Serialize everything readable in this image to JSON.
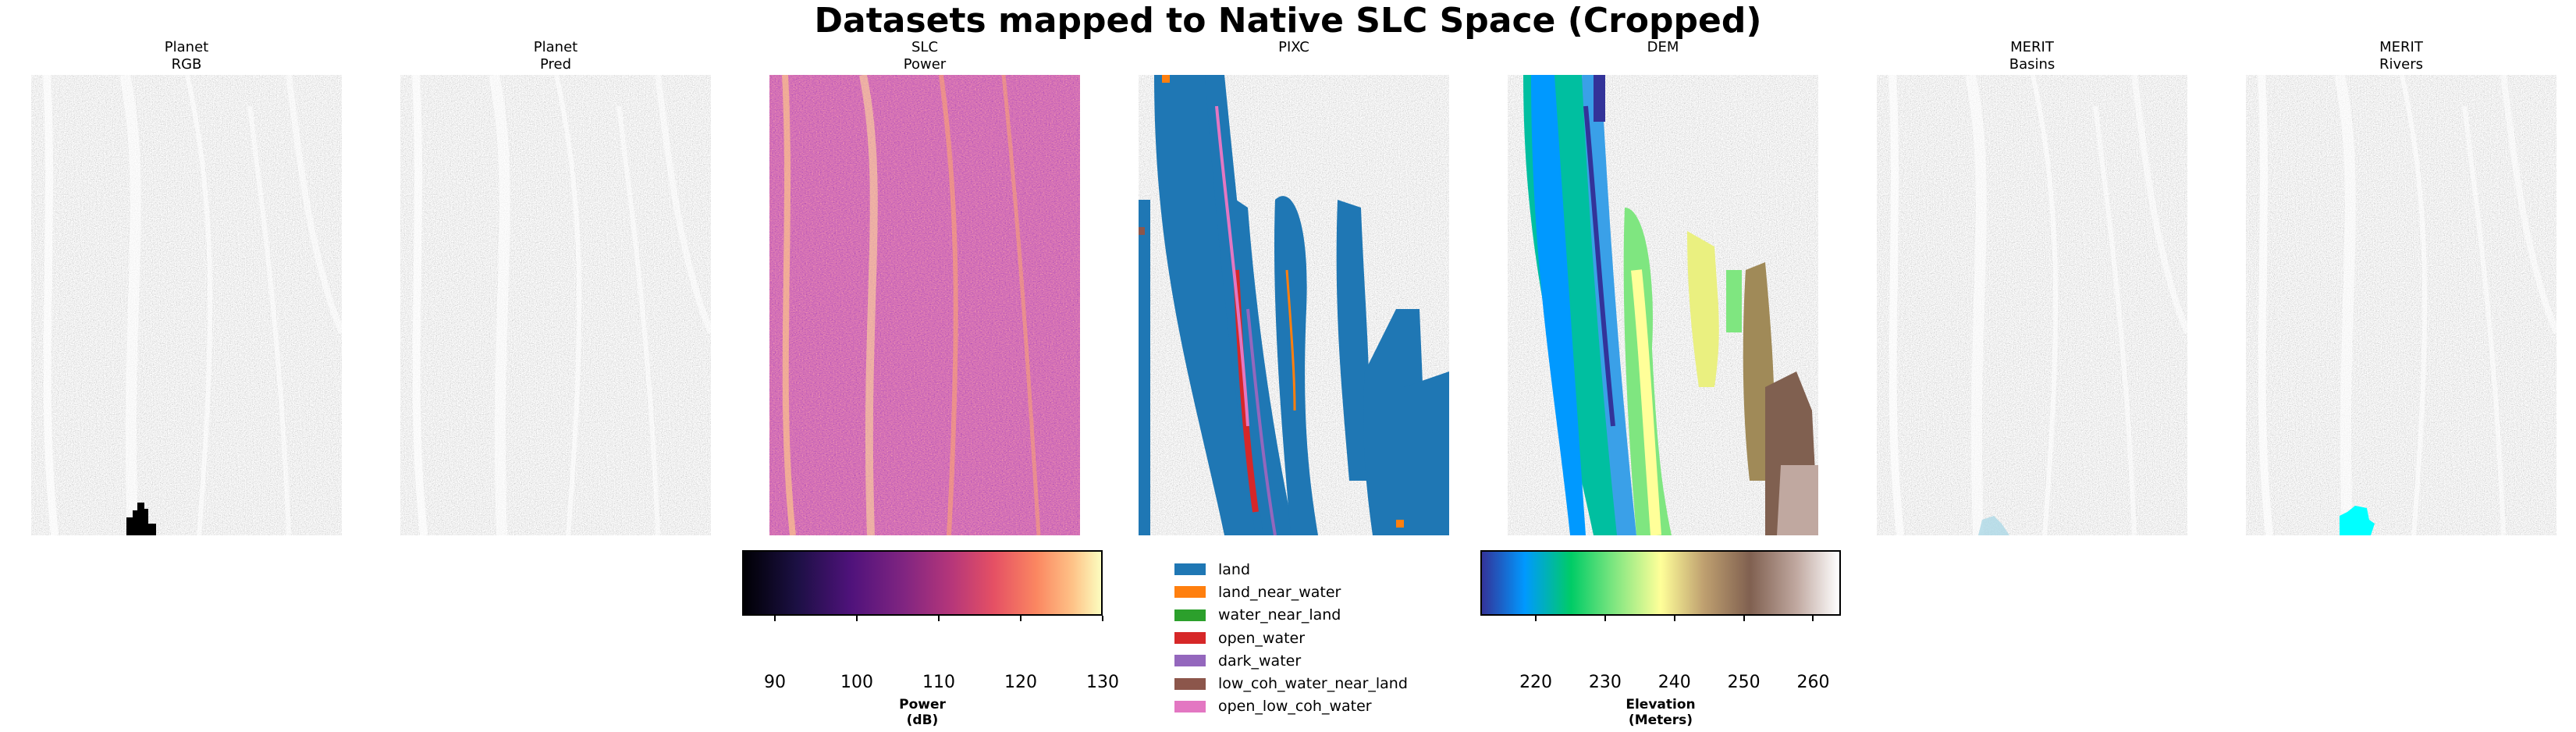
{
  "figure_title": "Datasets mapped to Native SLC Space (Cropped)",
  "panels": [
    {
      "title": "Planet\nRGB"
    },
    {
      "title": "Planet\nPred"
    },
    {
      "title": "SLC\nPower"
    },
    {
      "title": "PIXC"
    },
    {
      "title": "DEM"
    },
    {
      "title": "MERIT\nBasins"
    },
    {
      "title": "MERIT\nRivers"
    }
  ],
  "power_colorbar": {
    "label": "Power\n(dB)",
    "ticks": [
      "90",
      "100",
      "110",
      "120",
      "130"
    ],
    "colormap": "magma",
    "range": [
      86,
      130
    ]
  },
  "pixc_legend": [
    {
      "label": "land",
      "color": "#1f77b4"
    },
    {
      "label": "land_near_water",
      "color": "#ff7f0e"
    },
    {
      "label": "water_near_land",
      "color": "#2ca02c"
    },
    {
      "label": "open_water",
      "color": "#d62728"
    },
    {
      "label": "dark_water",
      "color": "#9467bd"
    },
    {
      "label": "low_coh_water_near_land",
      "color": "#8c564b"
    },
    {
      "label": "open_low_coh_water",
      "color": "#e377c2"
    }
  ],
  "elevation_colorbar": {
    "label": "Elevation\n(Meters)",
    "ticks": [
      "220",
      "230",
      "240",
      "250",
      "260"
    ],
    "colormap": "terrain",
    "range": [
      212,
      264
    ]
  },
  "chart_data": {
    "type": "heatmap",
    "title": "Datasets mapped to Native SLC Space (Cropped)",
    "panels": [
      "Planet RGB",
      "Planet Pred",
      "SLC Power",
      "PIXC",
      "DEM",
      "MERIT Basins",
      "MERIT Rivers"
    ],
    "power_colorbar": {
      "label": "Power (dB)",
      "ticks": [
        90,
        100,
        110,
        120,
        130
      ],
      "range": [
        86,
        130
      ]
    },
    "elevation_colorbar": {
      "label": "Elevation (Meters)",
      "ticks": [
        220,
        230,
        240,
        250,
        260
      ],
      "range": [
        212,
        264
      ]
    },
    "pixc_classes": [
      "land",
      "land_near_water",
      "water_near_land",
      "open_water",
      "dark_water",
      "low_coh_water_near_land",
      "open_low_coh_water"
    ],
    "grid": false
  }
}
